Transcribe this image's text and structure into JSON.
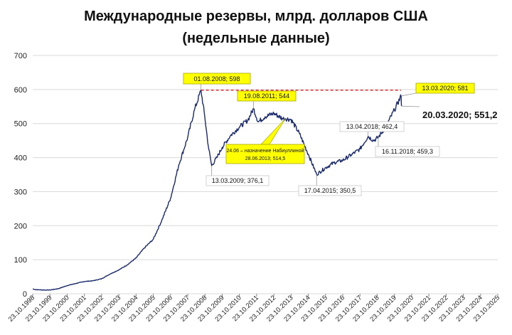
{
  "chart_data": {
    "type": "line",
    "title_lines": [
      "Международные резервы, млрд. долларов США",
      "(недельные данные)"
    ],
    "ylim": [
      0,
      700
    ],
    "yticks": [
      0,
      100,
      200,
      300,
      400,
      500,
      600,
      700
    ],
    "x_tick_labels": [
      "23.10.1998",
      "23.10.1999",
      "23.10.2000",
      "23.10.2001",
      "23.10.2002",
      "23.10.2003",
      "23.10.2004",
      "23.10.2005",
      "23.10.2006",
      "23.10.2007",
      "23.10.2008",
      "23.10.2009",
      "23.10.2010",
      "23.10.2011",
      "23.10.2012",
      "23.10.2013",
      "23.10.2014",
      "23.10.2015",
      "23.10.2016",
      "23.10.2017",
      "23.10.2018",
      "23.10.2019",
      "23.10.2020",
      "23.10.2021",
      "23.10.2022",
      "23.10.2023",
      "23.10.2024",
      "23.10.2025"
    ],
    "x_start_year": 1998.81,
    "x_end_year": 2025.81,
    "series": [
      {
        "color": "#1a2a6c",
        "points": [
          [
            1998.81,
            14
          ],
          [
            1999.0,
            12
          ],
          [
            1999.5,
            11
          ],
          [
            1999.81,
            11
          ],
          [
            2000.3,
            15
          ],
          [
            2000.81,
            24
          ],
          [
            2001.3,
            30
          ],
          [
            2001.81,
            36
          ],
          [
            2002.3,
            38
          ],
          [
            2002.81,
            44
          ],
          [
            2003.3,
            58
          ],
          [
            2003.81,
            70
          ],
          [
            2004.3,
            85
          ],
          [
            2004.81,
            105
          ],
          [
            2005.3,
            135
          ],
          [
            2005.81,
            160
          ],
          [
            2006.3,
            215
          ],
          [
            2006.81,
            280
          ],
          [
            2007.3,
            380
          ],
          [
            2007.81,
            460
          ],
          [
            2008.2,
            540
          ],
          [
            2008.58,
            598
          ],
          [
            2008.8,
            520
          ],
          [
            2009.0,
            435
          ],
          [
            2009.2,
            376.1
          ],
          [
            2009.5,
            400
          ],
          [
            2009.81,
            430
          ],
          [
            2010.3,
            465
          ],
          [
            2010.81,
            490
          ],
          [
            2011.3,
            510
          ],
          [
            2011.63,
            544
          ],
          [
            2011.9,
            505
          ],
          [
            2012.3,
            520
          ],
          [
            2012.81,
            530
          ],
          [
            2013.3,
            515
          ],
          [
            2013.48,
            514.5
          ],
          [
            2013.81,
            512
          ],
          [
            2014.3,
            470
          ],
          [
            2014.81,
            410
          ],
          [
            2015.29,
            350.5
          ],
          [
            2015.81,
            370
          ],
          [
            2016.3,
            385
          ],
          [
            2016.81,
            392
          ],
          [
            2017.3,
            408
          ],
          [
            2017.81,
            425
          ],
          [
            2018.28,
            462.4
          ],
          [
            2018.6,
            450
          ],
          [
            2018.87,
            459.3
          ],
          [
            2019.3,
            490
          ],
          [
            2019.81,
            540
          ],
          [
            2020.2,
            581
          ],
          [
            2020.22,
            551.2
          ]
        ]
      }
    ],
    "reference_line": {
      "y": 598,
      "x_from": 2008.58,
      "x_to": 2020.2,
      "color": "#e02020",
      "style": "dashed"
    },
    "annotations": [
      {
        "text": "01.08.2008; 598",
        "x": 2008.58,
        "y": 598,
        "style": "yellow"
      },
      {
        "text": "13.03.2020; 581",
        "x": 2020.2,
        "y": 581,
        "style": "yellow"
      },
      {
        "text": "19.08.2011; 544",
        "x": 2011.63,
        "y": 544,
        "style": "yellow"
      },
      {
        "text": "24.06 – назначение Набиуллиной",
        "text2": "28.06.2013;  514,5",
        "x": 2013.48,
        "y": 514.5,
        "style": "yellow-small"
      },
      {
        "text": "13.03.2009; 376,1",
        "x": 2009.2,
        "y": 376.1,
        "style": "plain"
      },
      {
        "text": "17.04.2015; 350,5",
        "x": 2015.29,
        "y": 350.5,
        "style": "plain"
      },
      {
        "text": "13.04.2018; 462,4",
        "x": 2018.28,
        "y": 462.4,
        "style": "plain"
      },
      {
        "text": "16.11.2018; 459,3",
        "x": 2018.87,
        "y": 459.3,
        "style": "plain"
      },
      {
        "text": "20.03.2020; 551,2",
        "x": 2020.22,
        "y": 551.2,
        "style": "big"
      }
    ]
  }
}
